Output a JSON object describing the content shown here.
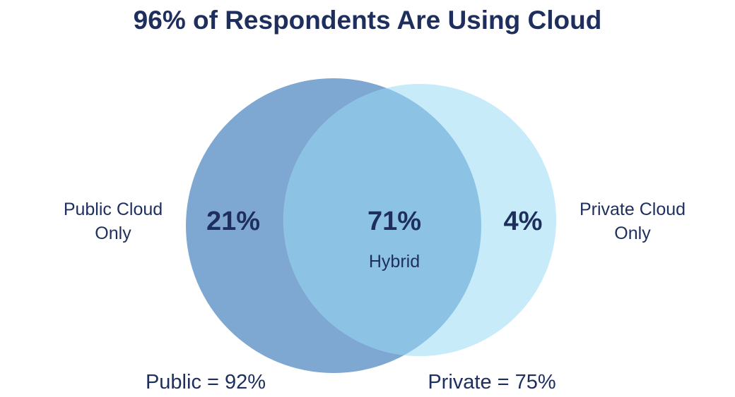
{
  "chart_data": {
    "type": "venn",
    "title": "96% of Respondents Are Using Cloud",
    "sets": [
      {
        "name": "Public",
        "total_label": "Public = 92%",
        "total": 92,
        "only_label": "Public Cloud Only",
        "only_value": "21%",
        "color": "#7ea8d1"
      },
      {
        "name": "Private",
        "total_label": "Private = 75%",
        "total": 75,
        "only_label": "Private Cloud Only",
        "only_value": "4%",
        "color": "#c8ebfa"
      }
    ],
    "intersection": {
      "label": "Hybrid",
      "value": "71%",
      "color": "#8cc3e5"
    }
  }
}
